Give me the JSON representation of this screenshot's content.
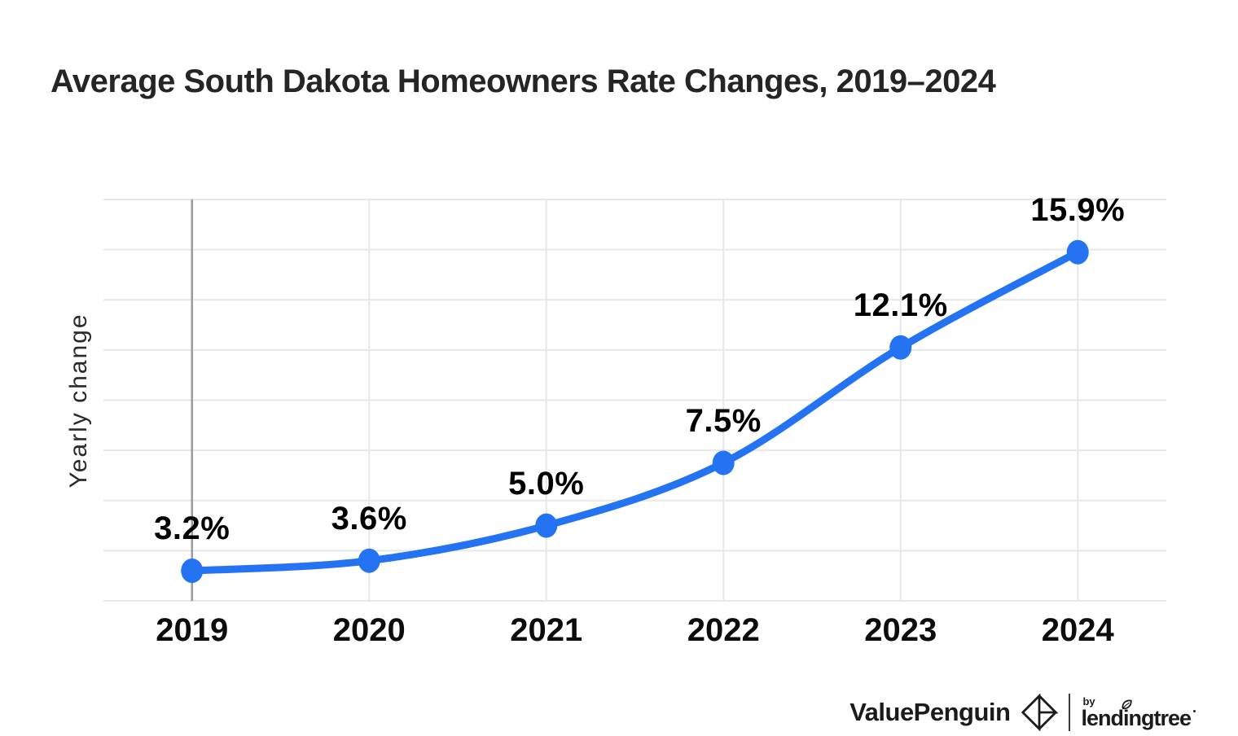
{
  "title": "Average South Dakota Homeowners Rate Changes, 2019–2024",
  "chart_data": {
    "type": "line",
    "categories": [
      "2019",
      "2020",
      "2021",
      "2022",
      "2023",
      "2024"
    ],
    "series": [
      {
        "name": "Yearly change",
        "values": [
          3.2,
          3.6,
          5.0,
          7.5,
          12.1,
          15.9
        ]
      }
    ],
    "point_labels": [
      "3.2%",
      "3.6%",
      "5.0%",
      "7.5%",
      "12.1%",
      "15.9%"
    ],
    "title": "Average South Dakota Homeowners Rate Changes, 2019–2024",
    "xlabel": "",
    "ylabel": "Yearly change",
    "ylim": [
      2,
      18
    ],
    "grid_step": 2,
    "grid": true,
    "legend": false,
    "smooth": true,
    "line_color": "#2473f3",
    "point_color": "#2473f3",
    "gridline_color": "#e7e7e7",
    "axis_baseline_color": "#9b9b9b",
    "label_color": "#000000"
  },
  "footer": {
    "brand": "ValuePenguin",
    "by": "by",
    "sub_brand": "lendingtree"
  }
}
